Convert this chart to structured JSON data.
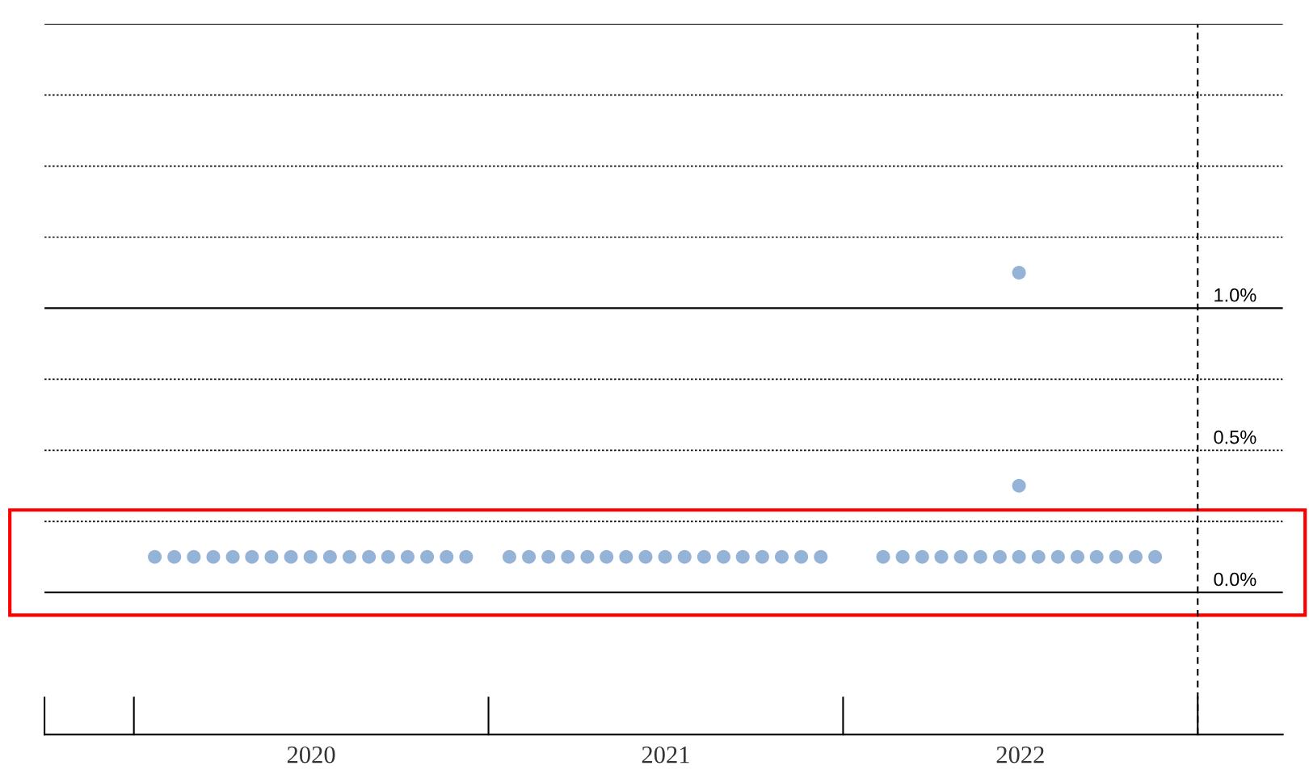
{
  "chart_data": {
    "type": "scatter",
    "marker": "circle",
    "series": [
      {
        "color": "#95b3d7",
        "x": [
          2020.059,
          2020.114,
          2020.169,
          2020.224,
          2020.279,
          2020.333,
          2020.388,
          2020.443,
          2020.498,
          2020.553,
          2020.608,
          2020.663,
          2020.717,
          2020.772,
          2020.827,
          2020.882,
          2020.937,
          2021.059,
          2021.114,
          2021.169,
          2021.224,
          2021.279,
          2021.333,
          2021.388,
          2021.443,
          2021.498,
          2021.553,
          2021.608,
          2021.663,
          2021.717,
          2021.772,
          2021.827,
          2021.882,
          2021.937,
          2022.113,
          2022.168,
          2022.223,
          2022.277,
          2022.332,
          2022.387,
          2022.442,
          2022.496,
          2022.551,
          2022.606,
          2022.661,
          2022.715,
          2022.77,
          2022.825,
          2022.88,
          2022.496,
          2022.496
        ],
        "values": [
          0.125,
          0.125,
          0.125,
          0.125,
          0.125,
          0.125,
          0.125,
          0.125,
          0.125,
          0.125,
          0.125,
          0.125,
          0.125,
          0.125,
          0.125,
          0.125,
          0.125,
          0.125,
          0.125,
          0.125,
          0.125,
          0.125,
          0.125,
          0.125,
          0.125,
          0.125,
          0.125,
          0.125,
          0.125,
          0.125,
          0.125,
          0.125,
          0.125,
          0.125,
          0.125,
          0.125,
          0.125,
          0.125,
          0.125,
          0.125,
          0.125,
          0.125,
          0.125,
          0.125,
          0.125,
          0.125,
          0.125,
          0.125,
          0.125,
          0.375,
          1.125
        ]
      }
    ],
    "xlim": [
      2019.748,
      2023.24
    ],
    "xticks": [
      {
        "value": 2020.5,
        "label": "2020"
      },
      {
        "value": 2021.5,
        "label": "2021"
      },
      {
        "value": 2022.5,
        "label": "2022"
      }
    ],
    "ylim": [
      -0.5,
      2.0
    ],
    "yticks": [
      {
        "value": 0,
        "label": "0.0%"
      },
      {
        "value": 0.25,
        "label": null
      },
      {
        "value": 0.5,
        "label": "0.5%"
      },
      {
        "value": 0.75,
        "label": null
      },
      {
        "value": 1.0,
        "label": "1.0%"
      },
      {
        "value": 1.25,
        "label": null
      },
      {
        "value": 1.5,
        "label": null
      },
      {
        "value": 1.75,
        "label": null
      },
      {
        "value": 2.0,
        "label": null
      }
    ],
    "grid": "y",
    "ref_lines": [
      {
        "axis": "x",
        "value": 2023,
        "line_style": "dashed",
        "color": "#000000"
      }
    ]
  }
}
